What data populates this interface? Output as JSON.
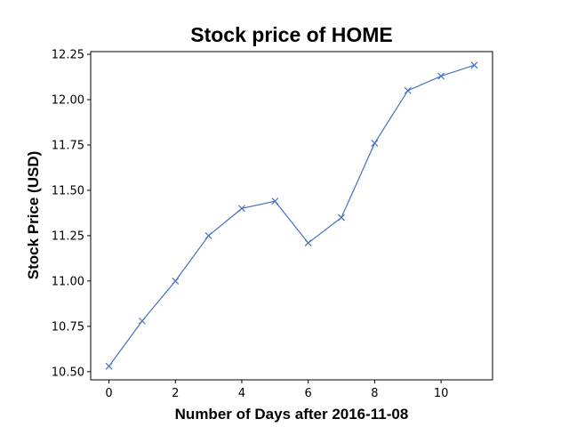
{
  "chart_data": {
    "type": "line",
    "title": "Stock price of HOME",
    "xlabel": "Number of Days after 2016-11-08",
    "ylabel": "Stock Price (USD)",
    "x": [
      0,
      1,
      2,
      3,
      4,
      5,
      6,
      7,
      8,
      9,
      10,
      11
    ],
    "series": [
      {
        "values": [
          10.53,
          10.78,
          11.0,
          11.25,
          11.4,
          11.44,
          11.21,
          11.35,
          11.76,
          12.05,
          12.13,
          12.19
        ],
        "color": "#4472c4",
        "marker": "x"
      }
    ],
    "xlim": [
      -0.55,
      11.55
    ],
    "ylim": [
      10.455,
      12.265
    ],
    "xticks": [
      0,
      2,
      4,
      6,
      8,
      10
    ],
    "xtick_labels": [
      "0",
      "2",
      "4",
      "6",
      "8",
      "10"
    ],
    "yticks": [
      10.5,
      10.75,
      11.0,
      11.25,
      11.5,
      11.75,
      12.0,
      12.25
    ],
    "ytick_labels": [
      "10.50",
      "10.75",
      "11.00",
      "11.25",
      "11.50",
      "11.75",
      "12.00",
      "12.25"
    ],
    "grid": false,
    "legend": false
  }
}
